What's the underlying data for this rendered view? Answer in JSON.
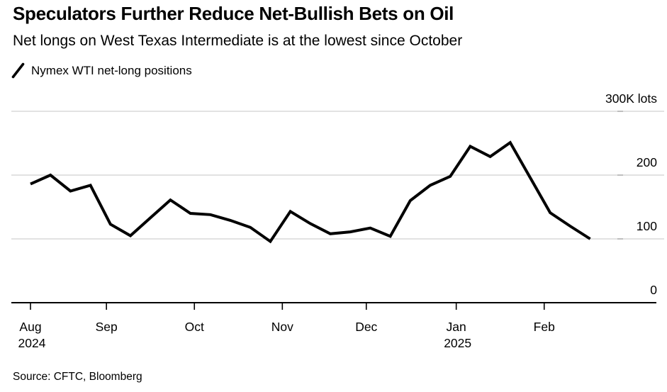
{
  "chart_data": {
    "type": "line",
    "title": "Speculators Further Reduce Net-Bullish Bets on Oil",
    "subtitle": "Net longs on West Texas Intermediate is at the lowest since October",
    "source": "Source: CFTC, Bloomberg",
    "x_unit": "weeks",
    "grid": "horizontal",
    "legend_position": "top-left",
    "ylim": [
      0,
      300
    ],
    "y_unit": "K lots",
    "series": [
      {
        "name": "Nymex WTI net-long positions",
        "color": "#000000",
        "values": [
          186,
          200,
          175,
          184,
          123,
          105,
          133,
          161,
          140,
          138,
          129,
          118,
          96,
          143,
          124,
          108,
          111,
          117,
          104,
          160,
          184,
          198,
          245,
          229,
          251,
          196,
          141,
          120,
          100
        ]
      }
    ],
    "x_ticks": [
      {
        "label": "Aug",
        "sublabel": "2024",
        "pos": 0
      },
      {
        "label": "Sep",
        "pos": 3.8
      },
      {
        "label": "Oct",
        "pos": 8.2
      },
      {
        "label": "Nov",
        "pos": 12.6
      },
      {
        "label": "Dec",
        "pos": 16.8
      },
      {
        "label": "Jan",
        "sublabel": "2025",
        "pos": 21.3
      },
      {
        "label": "Feb",
        "pos": 25.7
      }
    ],
    "y_ticks": [
      {
        "value": 0,
        "label": "0"
      },
      {
        "value": 100,
        "label": "100"
      },
      {
        "value": 200,
        "label": "200"
      },
      {
        "value": 300,
        "label": "300K lots"
      }
    ],
    "colors": {
      "line": "#000000",
      "gridline": "#d9d9d9",
      "axis": "#000000",
      "text": "#000000"
    }
  }
}
